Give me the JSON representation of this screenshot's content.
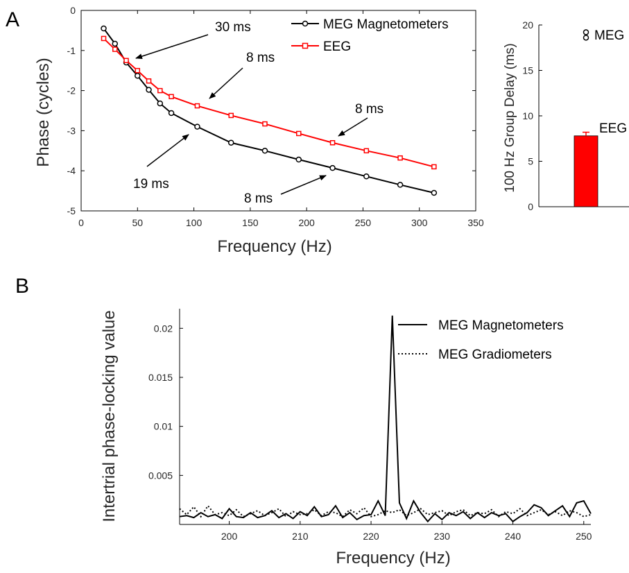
{
  "panel_labels": {
    "a": "A",
    "b": "B"
  },
  "chart_data": [
    {
      "id": "phase",
      "type": "line",
      "xlabel": "Frequency (Hz)",
      "ylabel": "Phase (cycles)",
      "xlim": [
        0,
        350
      ],
      "ylim": [
        -5,
        0
      ],
      "xticks": [
        0,
        50,
        100,
        150,
        200,
        250,
        300,
        350
      ],
      "yticks": [
        0,
        -1,
        -2,
        -3,
        -4,
        -5
      ],
      "xtick_labels": [
        "0",
        "50",
        "100",
        "150",
        "200",
        "250",
        "300",
        "350"
      ],
      "ytick_labels": [
        "0",
        "-1",
        "-2",
        "-3",
        "-4",
        "-5"
      ],
      "legend_position": "top-right",
      "series": [
        {
          "name": "MEG Magnetometers",
          "color": "#000000",
          "marker": "circle",
          "x": [
            20,
            30,
            40,
            50,
            60,
            70,
            80,
            103,
            133,
            163,
            193,
            223,
            253,
            283,
            313
          ],
          "y": [
            -0.45,
            -0.83,
            -1.3,
            -1.63,
            -1.98,
            -2.32,
            -2.56,
            -2.9,
            -3.3,
            -3.5,
            -3.72,
            -3.93,
            -4.14,
            -4.35,
            -4.55
          ]
        },
        {
          "name": "EEG",
          "color": "#ff0000",
          "marker": "square",
          "x": [
            20,
            30,
            40,
            50,
            60,
            70,
            80,
            103,
            133,
            163,
            193,
            223,
            253,
            283,
            313
          ],
          "y": [
            -0.7,
            -0.97,
            -1.25,
            -1.5,
            -1.76,
            -2.0,
            -2.15,
            -2.38,
            -2.62,
            -2.83,
            -3.07,
            -3.3,
            -3.5,
            -3.68,
            -3.9
          ]
        }
      ],
      "annotations": [
        {
          "text": "30 ms",
          "x": 48,
          "y": -1.2
        },
        {
          "text": "8 ms",
          "x": 110,
          "y": -2.05
        },
        {
          "text": "8 ms",
          "x": 228,
          "y": -3.15
        },
        {
          "text": "19 ms",
          "x": 95,
          "y": -3.1
        },
        {
          "text": "8 ms",
          "x": 215,
          "y": -4.0
        }
      ]
    },
    {
      "id": "group-delay",
      "type": "bar",
      "ylabel": "100 Hz Group Delay (ms)",
      "ylim": [
        0,
        20
      ],
      "yticks": [
        0,
        5,
        10,
        15,
        20
      ],
      "ytick_labels": [
        "0",
        "5",
        "10",
        "15",
        "20"
      ],
      "bars": [
        {
          "label": "EEG",
          "value": 7.8,
          "error": 0.4,
          "color": "#ff0000"
        }
      ],
      "points": [
        {
          "label": "MEG",
          "values": [
            18.6,
            19.2
          ]
        }
      ]
    },
    {
      "id": "itpc",
      "type": "line",
      "xlabel": "Frequency (Hz)",
      "ylabel": "Intertrial phase-locking value",
      "xlim": [
        193,
        251
      ],
      "ylim": [
        0,
        0.022
      ],
      "xticks": [
        200,
        210,
        220,
        230,
        240,
        250
      ],
      "xtick_labels": [
        "200",
        "210",
        "220",
        "230",
        "240",
        "250"
      ],
      "yticks": [
        0.005,
        0.01,
        0.015,
        0.02
      ],
      "ytick_labels": [
        "0.005",
        "0.01",
        "0.015",
        "0.02"
      ],
      "legend_position": "top-right",
      "series": [
        {
          "name": "MEG Magnetometers",
          "style": "solid",
          "color": "#000000",
          "x": [
            193,
            194,
            195,
            196,
            197,
            198,
            199,
            200,
            201,
            202,
            203,
            204,
            205,
            206,
            207,
            208,
            209,
            210,
            211,
            212,
            213,
            214,
            215,
            216,
            217,
            218,
            219,
            220,
            221,
            222,
            223,
            224,
            225,
            226,
            227,
            228,
            229,
            230,
            231,
            232,
            233,
            234,
            235,
            236,
            237,
            238,
            239,
            240,
            241,
            242,
            243,
            244,
            245,
            246,
            247,
            248,
            249,
            250,
            251
          ],
          "y": [
            0.0008,
            0.0009,
            0.0007,
            0.0012,
            0.0008,
            0.001,
            0.0006,
            0.0016,
            0.0008,
            0.0007,
            0.0012,
            0.0007,
            0.0009,
            0.0014,
            0.0007,
            0.0011,
            0.0006,
            0.0013,
            0.0009,
            0.0018,
            0.0008,
            0.001,
            0.0019,
            0.0007,
            0.0012,
            0.0005,
            0.0009,
            0.001,
            0.0024,
            0.0009,
            0.0213,
            0.0022,
            0.0006,
            0.0024,
            0.0012,
            0.0003,
            0.0011,
            0.0005,
            0.0012,
            0.0009,
            0.0013,
            0.0006,
            0.0012,
            0.0007,
            0.0012,
            0.0009,
            0.0011,
            0.0003,
            0.0008,
            0.0012,
            0.002,
            0.0017,
            0.0009,
            0.0014,
            0.0019,
            0.0008,
            0.0022,
            0.0024,
            0.0011
          ]
        },
        {
          "name": "MEG Gradiometers",
          "style": "dotted",
          "color": "#000000",
          "x": [
            193,
            194,
            195,
            196,
            197,
            198,
            199,
            200,
            201,
            202,
            203,
            204,
            205,
            206,
            207,
            208,
            209,
            210,
            211,
            212,
            213,
            214,
            215,
            216,
            217,
            218,
            219,
            220,
            221,
            222,
            223,
            224,
            225,
            226,
            227,
            228,
            229,
            230,
            231,
            232,
            233,
            234,
            235,
            236,
            237,
            238,
            239,
            240,
            241,
            242,
            243,
            244,
            245,
            246,
            247,
            248,
            249,
            250,
            251
          ],
          "y": [
            0.0016,
            0.001,
            0.0018,
            0.0008,
            0.0019,
            0.001,
            0.0012,
            0.0009,
            0.0015,
            0.0008,
            0.0011,
            0.0014,
            0.0009,
            0.0012,
            0.0016,
            0.0008,
            0.0013,
            0.001,
            0.0011,
            0.0015,
            0.0009,
            0.0013,
            0.0012,
            0.0008,
            0.0015,
            0.0011,
            0.0017,
            0.0008,
            0.001,
            0.0014,
            0.0012,
            0.0015,
            0.0009,
            0.0012,
            0.0016,
            0.001,
            0.0012,
            0.0014,
            0.0009,
            0.0013,
            0.0015,
            0.0009,
            0.0012,
            0.0011,
            0.0015,
            0.0008,
            0.0013,
            0.0011,
            0.0016,
            0.0009,
            0.0012,
            0.0015,
            0.001,
            0.0013,
            0.0009,
            0.0014,
            0.0012,
            0.0008,
            0.001
          ]
        }
      ]
    }
  ]
}
